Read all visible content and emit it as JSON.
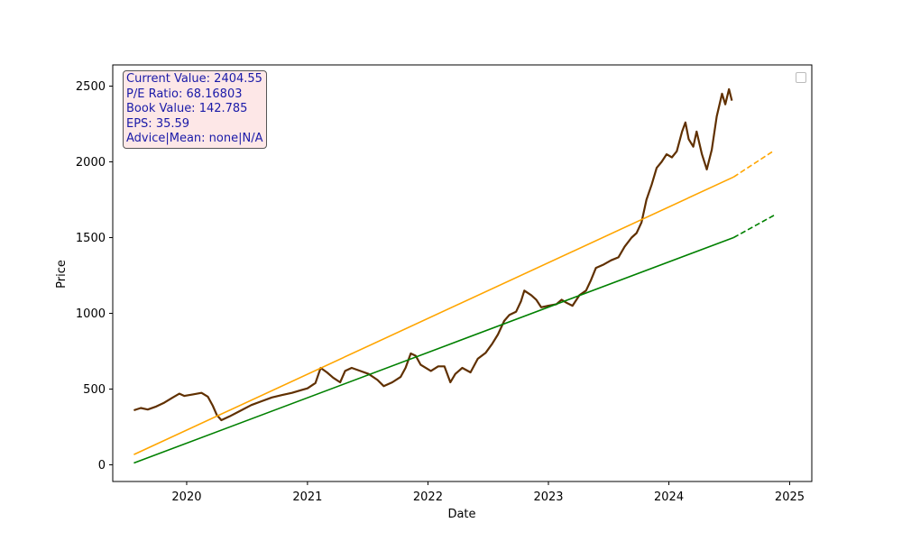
{
  "info_box": {
    "lines": [
      "Current Value: 2404.55",
      "P/E Ratio: 68.16803",
      "Book Value: 142.785",
      "EPS: 35.59",
      "Advice|Mean: none|N/A"
    ]
  },
  "chart_data": {
    "type": "line",
    "title": "",
    "xlabel": "Date",
    "ylabel": "Price",
    "xlim": [
      "2019-05-22",
      "2025-03-09"
    ],
    "ylim": [
      -110,
      2640
    ],
    "x_ticks": [
      "2020",
      "2021",
      "2022",
      "2023",
      "2024",
      "2025"
    ],
    "y_ticks": [
      0,
      500,
      1000,
      1500,
      2000,
      2500
    ],
    "grid": false,
    "legend": "top-right (empty)",
    "series": [
      {
        "color": "#603000",
        "style": "solid",
        "points": [
          [
            "2019-07-25",
            360
          ],
          [
            "2019-08-15",
            375
          ],
          [
            "2019-09-05",
            365
          ],
          [
            "2019-10-01",
            385
          ],
          [
            "2019-10-25",
            410
          ],
          [
            "2019-11-20",
            445
          ],
          [
            "2019-12-10",
            470
          ],
          [
            "2019-12-25",
            455
          ],
          [
            "2020-01-20",
            465
          ],
          [
            "2020-02-15",
            475
          ],
          [
            "2020-03-05",
            450
          ],
          [
            "2020-03-20",
            390
          ],
          [
            "2020-04-01",
            330
          ],
          [
            "2020-04-15",
            295
          ],
          [
            "2020-05-10",
            320
          ],
          [
            "2020-06-10",
            355
          ],
          [
            "2020-07-15",
            395
          ],
          [
            "2020-08-15",
            420
          ],
          [
            "2020-09-15",
            445
          ],
          [
            "2020-10-15",
            460
          ],
          [
            "2020-11-15",
            475
          ],
          [
            "2020-12-15",
            495
          ],
          [
            "2021-01-01",
            505
          ],
          [
            "2021-01-25",
            540
          ],
          [
            "2021-02-10",
            640
          ],
          [
            "2021-03-01",
            610
          ],
          [
            "2021-03-20",
            575
          ],
          [
            "2021-04-10",
            545
          ],
          [
            "2021-04-25",
            620
          ],
          [
            "2021-05-15",
            640
          ],
          [
            "2021-06-10",
            620
          ],
          [
            "2021-07-05",
            600
          ],
          [
            "2021-08-01",
            560
          ],
          [
            "2021-08-20",
            520
          ],
          [
            "2021-09-15",
            545
          ],
          [
            "2021-10-10",
            580
          ],
          [
            "2021-10-25",
            640
          ],
          [
            "2021-11-10",
            735
          ],
          [
            "2021-11-25",
            720
          ],
          [
            "2021-12-10",
            660
          ],
          [
            "2022-01-10",
            620
          ],
          [
            "2022-02-01",
            650
          ],
          [
            "2022-02-20",
            650
          ],
          [
            "2022-03-10",
            545
          ],
          [
            "2022-03-25",
            600
          ],
          [
            "2022-04-15",
            640
          ],
          [
            "2022-05-10",
            610
          ],
          [
            "2022-06-01",
            700
          ],
          [
            "2022-06-25",
            740
          ],
          [
            "2022-07-15",
            800
          ],
          [
            "2022-08-01",
            860
          ],
          [
            "2022-08-20",
            950
          ],
          [
            "2022-09-05",
            990
          ],
          [
            "2022-09-25",
            1010
          ],
          [
            "2022-10-10",
            1080
          ],
          [
            "2022-10-20",
            1150
          ],
          [
            "2022-11-10",
            1120
          ],
          [
            "2022-11-25",
            1090
          ],
          [
            "2022-12-10",
            1040
          ],
          [
            "2023-01-01",
            1050
          ],
          [
            "2023-01-25",
            1060
          ],
          [
            "2023-02-10",
            1090
          ],
          [
            "2023-02-25",
            1070
          ],
          [
            "2023-03-15",
            1050
          ],
          [
            "2023-04-05",
            1120
          ],
          [
            "2023-04-25",
            1150
          ],
          [
            "2023-05-10",
            1220
          ],
          [
            "2023-05-25",
            1300
          ],
          [
            "2023-06-15",
            1320
          ],
          [
            "2023-07-10",
            1350
          ],
          [
            "2023-08-01",
            1370
          ],
          [
            "2023-08-20",
            1440
          ],
          [
            "2023-09-10",
            1500
          ],
          [
            "2023-09-25",
            1530
          ],
          [
            "2023-10-10",
            1600
          ],
          [
            "2023-10-25",
            1750
          ],
          [
            "2023-11-10",
            1850
          ],
          [
            "2023-11-25",
            1960
          ],
          [
            "2023-12-10",
            2000
          ],
          [
            "2023-12-25",
            2050
          ],
          [
            "2024-01-10",
            2030
          ],
          [
            "2024-01-25",
            2070
          ],
          [
            "2024-02-10",
            2200
          ],
          [
            "2024-02-20",
            2260
          ],
          [
            "2024-03-01",
            2150
          ],
          [
            "2024-03-15",
            2100
          ],
          [
            "2024-03-25",
            2200
          ],
          [
            "2024-04-10",
            2050
          ],
          [
            "2024-04-25",
            1950
          ],
          [
            "2024-05-10",
            2080
          ],
          [
            "2024-05-25",
            2300
          ],
          [
            "2024-06-10",
            2450
          ],
          [
            "2024-06-20",
            2380
          ],
          [
            "2024-07-01",
            2480
          ],
          [
            "2024-07-10",
            2404.55
          ]
        ]
      },
      {
        "color": "#ffa500",
        "style": "solid",
        "points": [
          [
            "2019-07-25",
            68
          ],
          [
            "2024-07-15",
            1900
          ]
        ]
      },
      {
        "color": "#ffa500",
        "style": "dashed",
        "points": [
          [
            "2024-07-15",
            1900
          ],
          [
            "2024-11-15",
            2075
          ]
        ]
      },
      {
        "color": "#008000",
        "style": "solid",
        "points": [
          [
            "2019-07-25",
            12
          ],
          [
            "2024-07-15",
            1500
          ]
        ]
      },
      {
        "color": "#008000",
        "style": "dashed",
        "points": [
          [
            "2024-07-15",
            1500
          ],
          [
            "2024-11-15",
            1648
          ]
        ]
      }
    ]
  }
}
